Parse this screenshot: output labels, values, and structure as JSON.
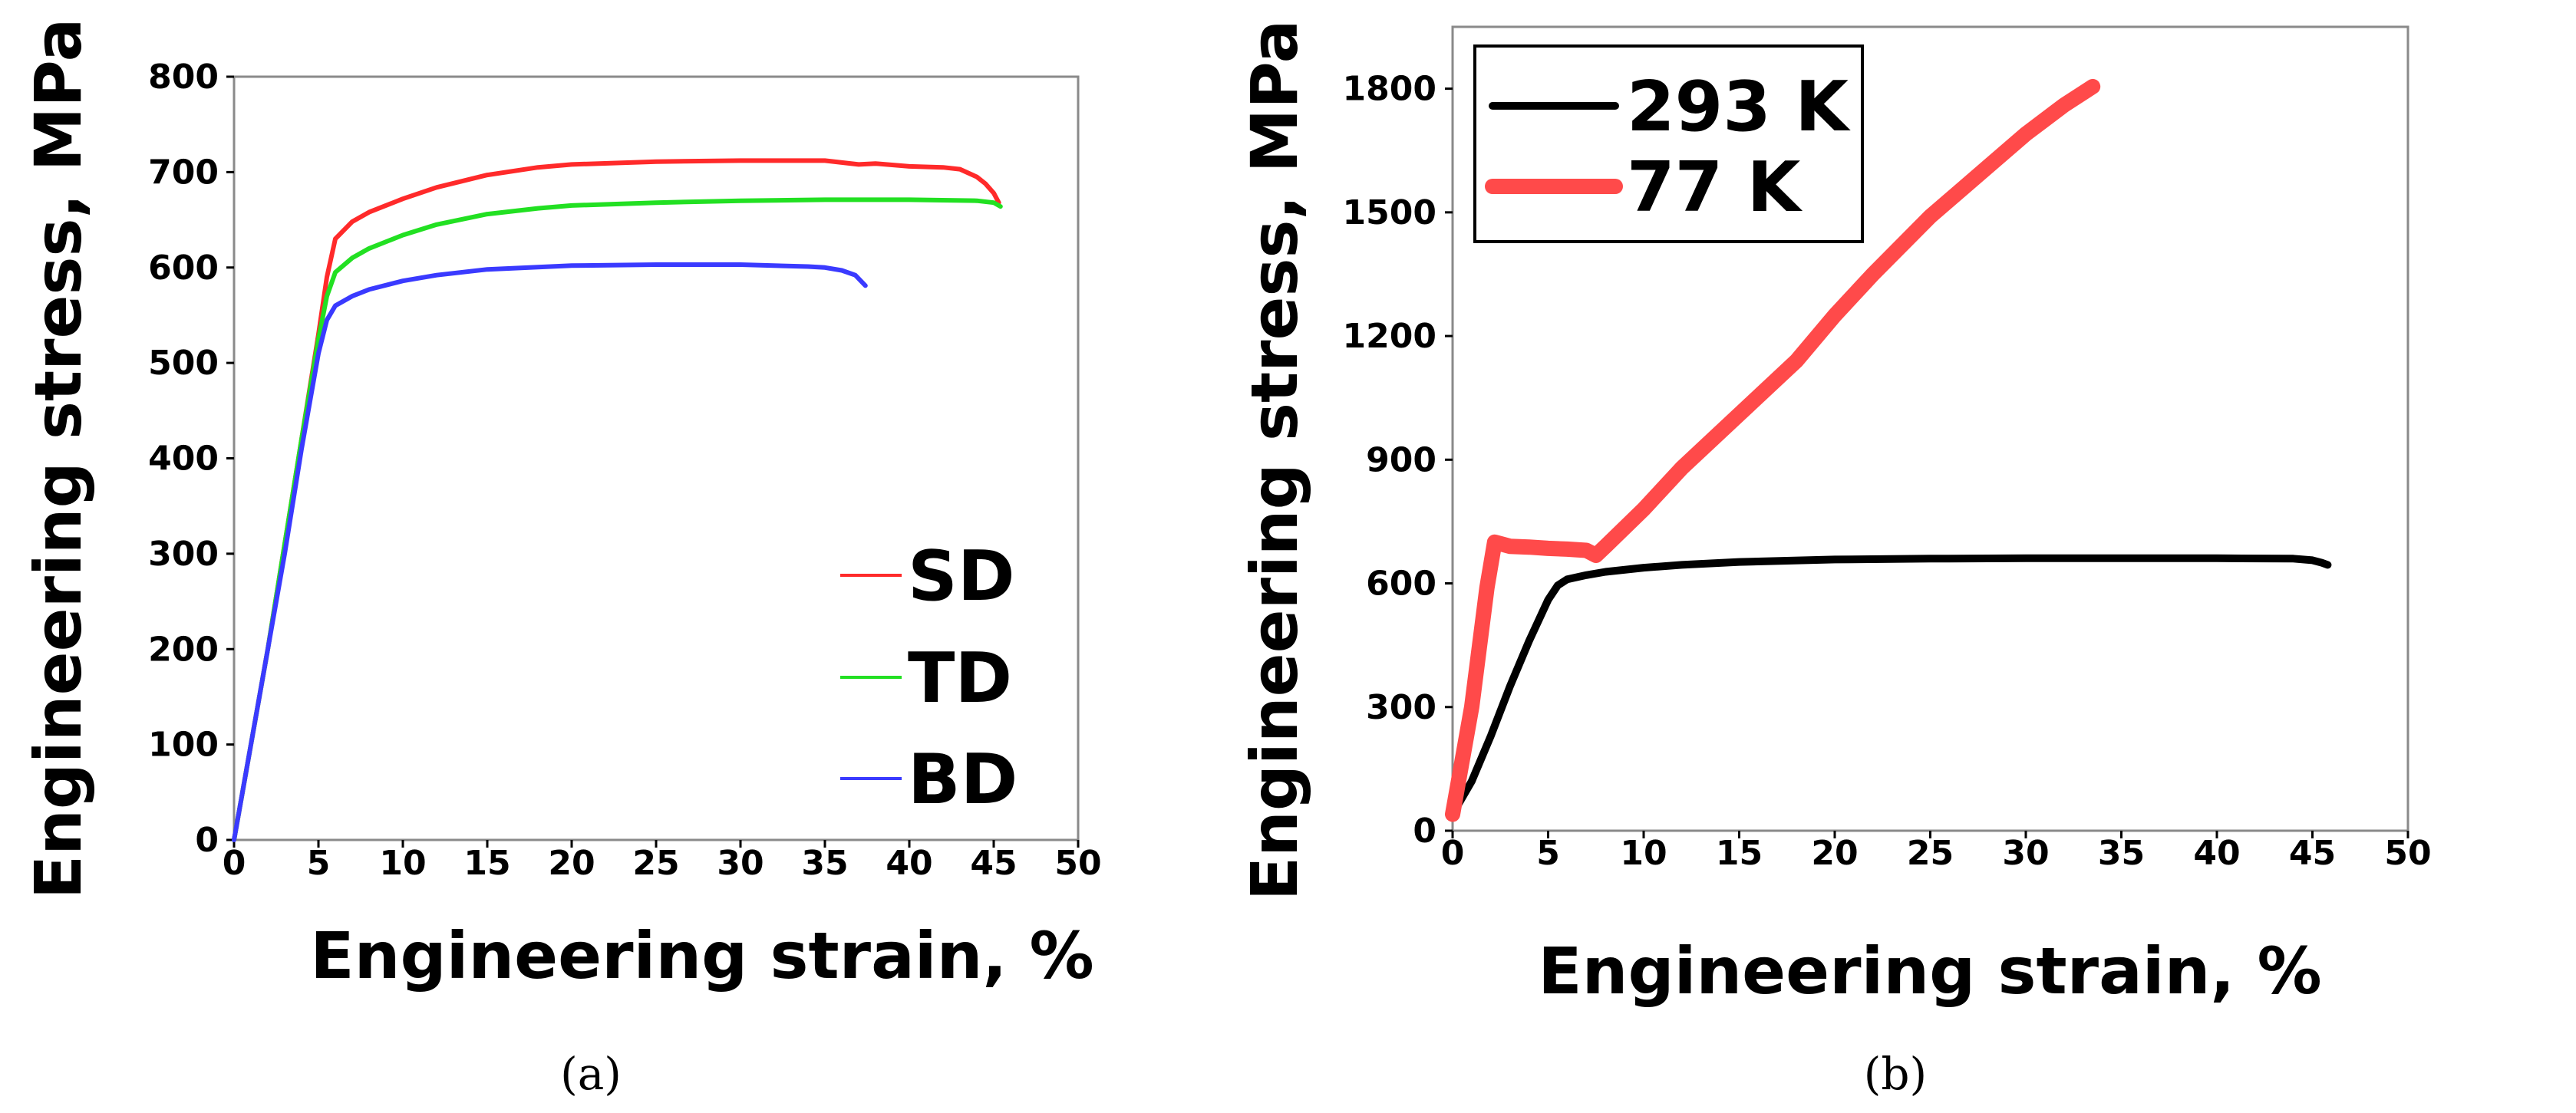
{
  "chart_data": [
    {
      "id": "a",
      "type": "line",
      "caption": "(a)",
      "xlabel": "Engineering strain, %",
      "ylabel": "Engineering stress, MPa",
      "xlim": [
        0,
        50
      ],
      "ylim": [
        0,
        800
      ],
      "xticks": [
        "0",
        "5",
        "10",
        "15",
        "20",
        "25",
        "30",
        "35",
        "40",
        "45",
        "50"
      ],
      "yticks": [
        "0",
        "100",
        "200",
        "300",
        "400",
        "500",
        "600",
        "700",
        "800"
      ],
      "legend_position": "bottom-right",
      "series": [
        {
          "name": "SD",
          "color": "#ff2a2a",
          "points": [
            [
              0,
              0
            ],
            [
              1,
              100
            ],
            [
              2,
              200
            ],
            [
              3,
              310
            ],
            [
              4,
              420
            ],
            [
              5,
              530
            ],
            [
              5.5,
              590
            ],
            [
              6,
              630
            ],
            [
              7,
              648
            ],
            [
              8,
              658
            ],
            [
              10,
              672
            ],
            [
              12,
              684
            ],
            [
              15,
              697
            ],
            [
              18,
              705
            ],
            [
              20,
              708
            ],
            [
              25,
              711
            ],
            [
              30,
              712
            ],
            [
              35,
              712
            ],
            [
              36,
              710
            ],
            [
              37,
              708
            ],
            [
              38,
              709
            ],
            [
              40,
              706
            ],
            [
              42,
              705
            ],
            [
              43,
              703
            ],
            [
              44,
              695
            ],
            [
              44.5,
              688
            ],
            [
              45,
              678
            ],
            [
              45.3,
              668
            ]
          ]
        },
        {
          "name": "TD",
          "color": "#22e022",
          "points": [
            [
              0,
              0
            ],
            [
              1,
              100
            ],
            [
              2,
              200
            ],
            [
              3,
              310
            ],
            [
              4,
              420
            ],
            [
              5,
              525
            ],
            [
              5.5,
              570
            ],
            [
              6,
              595
            ],
            [
              7,
              610
            ],
            [
              8,
              620
            ],
            [
              10,
              634
            ],
            [
              12,
              645
            ],
            [
              15,
              656
            ],
            [
              18,
              662
            ],
            [
              20,
              665
            ],
            [
              25,
              668
            ],
            [
              30,
              670
            ],
            [
              35,
              671
            ],
            [
              40,
              671
            ],
            [
              44,
              670
            ],
            [
              45,
              668
            ],
            [
              45.4,
              664
            ]
          ]
        },
        {
          "name": "BD",
          "color": "#3a3aff",
          "points": [
            [
              0,
              0
            ],
            [
              1,
              100
            ],
            [
              2,
              200
            ],
            [
              3,
              300
            ],
            [
              4,
              410
            ],
            [
              5,
              510
            ],
            [
              5.5,
              545
            ],
            [
              6,
              560
            ],
            [
              7,
              570
            ],
            [
              8,
              577
            ],
            [
              10,
              586
            ],
            [
              12,
              592
            ],
            [
              15,
              598
            ],
            [
              20,
              602
            ],
            [
              25,
              603
            ],
            [
              30,
              603
            ],
            [
              34,
              601
            ],
            [
              35,
              600
            ],
            [
              36,
              597
            ],
            [
              36.8,
              592
            ],
            [
              37.4,
              581
            ]
          ]
        }
      ]
    },
    {
      "id": "b",
      "type": "line",
      "caption": "(b)",
      "xlabel": "Engineering strain, %",
      "ylabel": "Engineering stress, MPa",
      "xlim": [
        0,
        50
      ],
      "ylim": [
        0,
        1950
      ],
      "xticks": [
        "0",
        "5",
        "10",
        "15",
        "20",
        "25",
        "30",
        "35",
        "40",
        "45",
        "50"
      ],
      "yticks": [
        "0",
        "300",
        "600",
        "900",
        "1200",
        "1500",
        "1800"
      ],
      "legend_position": "top-left",
      "series": [
        {
          "name": "293 K",
          "color": "#000000",
          "points": [
            [
              0,
              40
            ],
            [
              1,
              120
            ],
            [
              2,
              230
            ],
            [
              3,
              350
            ],
            [
              4,
              460
            ],
            [
              5,
              560
            ],
            [
              5.5,
              595
            ],
            [
              6,
              610
            ],
            [
              7,
              620
            ],
            [
              8,
              628
            ],
            [
              10,
              638
            ],
            [
              12,
              645
            ],
            [
              15,
              652
            ],
            [
              20,
              658
            ],
            [
              25,
              660
            ],
            [
              30,
              661
            ],
            [
              35,
              661
            ],
            [
              40,
              661
            ],
            [
              44,
              660
            ],
            [
              45,
              656
            ],
            [
              45.5,
              650
            ],
            [
              45.8,
              645
            ]
          ]
        },
        {
          "name": "77 K",
          "color": "#ff4a4a",
          "points": [
            [
              0,
              40
            ],
            [
              1,
              300
            ],
            [
              1.8,
              590
            ],
            [
              2.2,
              700
            ],
            [
              3,
              690
            ],
            [
              4,
              688
            ],
            [
              5,
              685
            ],
            [
              6,
              683
            ],
            [
              7,
              680
            ],
            [
              7.5,
              668
            ],
            [
              8,
              690
            ],
            [
              10,
              780
            ],
            [
              12,
              880
            ],
            [
              15,
              1010
            ],
            [
              18,
              1140
            ],
            [
              20,
              1250
            ],
            [
              22,
              1350
            ],
            [
              25,
              1490
            ],
            [
              28,
              1610
            ],
            [
              30,
              1690
            ],
            [
              32,
              1760
            ],
            [
              33.5,
              1805
            ]
          ]
        }
      ]
    }
  ]
}
